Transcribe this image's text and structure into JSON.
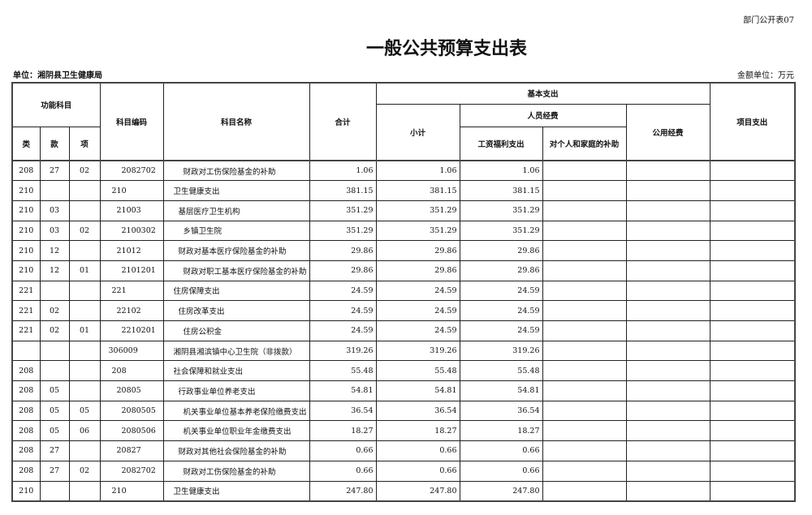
{
  "form_no": "部门公开表07",
  "title": "一般公共预算支出表",
  "unit": "单位：湘阴县卫生健康局",
  "money_unit": "金额单位：万元",
  "headers": {
    "func": "功能科目",
    "lei": "类",
    "kuan": "款",
    "xiang": "项",
    "code": "科目编码",
    "name": "科目名称",
    "total": "合计",
    "basic": "基本支出",
    "subtotal": "小计",
    "personnel": "人员经费",
    "wages": "工资福利支出",
    "subsidy": "对个人和家庭的补助",
    "public": "公用经费",
    "project": "项目支出"
  },
  "rows": [
    {
      "lei": "208",
      "kuan": "27",
      "xiang": "02",
      "code": "2082702",
      "name": "财政对工伤保险基金的补助",
      "total": "1.06",
      "subtotal": "1.06",
      "wages": "1.06",
      "level": 2
    },
    {
      "lei": "210",
      "kuan": "",
      "xiang": "",
      "code": "210",
      "name": "卫生健康支出",
      "total": "381.15",
      "subtotal": "381.15",
      "wages": "381.15",
      "level": 0
    },
    {
      "lei": "210",
      "kuan": "03",
      "xiang": "",
      "code": "21003",
      "name": "基层医疗卫生机构",
      "total": "351.29",
      "subtotal": "351.29",
      "wages": "351.29",
      "level": 1
    },
    {
      "lei": "210",
      "kuan": "03",
      "xiang": "02",
      "code": "2100302",
      "name": "乡镇卫生院",
      "total": "351.29",
      "subtotal": "351.29",
      "wages": "351.29",
      "level": 2
    },
    {
      "lei": "210",
      "kuan": "12",
      "xiang": "",
      "code": "21012",
      "name": "财政对基本医疗保险基金的补助",
      "total": "29.86",
      "subtotal": "29.86",
      "wages": "29.86",
      "level": 1
    },
    {
      "lei": "210",
      "kuan": "12",
      "xiang": "01",
      "code": "2101201",
      "name": "财政对职工基本医疗保险基金的补助",
      "total": "29.86",
      "subtotal": "29.86",
      "wages": "29.86",
      "level": 2
    },
    {
      "lei": "221",
      "kuan": "",
      "xiang": "",
      "code": "221",
      "name": "住房保障支出",
      "total": "24.59",
      "subtotal": "24.59",
      "wages": "24.59",
      "level": 0
    },
    {
      "lei": "221",
      "kuan": "02",
      "xiang": "",
      "code": "22102",
      "name": "住房改革支出",
      "total": "24.59",
      "subtotal": "24.59",
      "wages": "24.59",
      "level": 1
    },
    {
      "lei": "221",
      "kuan": "02",
      "xiang": "01",
      "code": "2210201",
      "name": "住房公积金",
      "total": "24.59",
      "subtotal": "24.59",
      "wages": "24.59",
      "level": 2
    },
    {
      "lei": "",
      "kuan": "",
      "xiang": "",
      "code": "306009",
      "name": "湘阴县湘滨镇中心卫生院（非拨款）",
      "total": "319.26",
      "subtotal": "319.26",
      "wages": "319.26",
      "level": -1
    },
    {
      "lei": "208",
      "kuan": "",
      "xiang": "",
      "code": "208",
      "name": "社会保障和就业支出",
      "total": "55.48",
      "subtotal": "55.48",
      "wages": "55.48",
      "level": 0
    },
    {
      "lei": "208",
      "kuan": "05",
      "xiang": "",
      "code": "20805",
      "name": "行政事业单位养老支出",
      "total": "54.81",
      "subtotal": "54.81",
      "wages": "54.81",
      "level": 1
    },
    {
      "lei": "208",
      "kuan": "05",
      "xiang": "05",
      "code": "2080505",
      "name": "机关事业单位基本养老保险缴费支出",
      "total": "36.54",
      "subtotal": "36.54",
      "wages": "36.54",
      "level": 2
    },
    {
      "lei": "208",
      "kuan": "05",
      "xiang": "06",
      "code": "2080506",
      "name": "机关事业单位职业年金缴费支出",
      "total": "18.27",
      "subtotal": "18.27",
      "wages": "18.27",
      "level": 2
    },
    {
      "lei": "208",
      "kuan": "27",
      "xiang": "",
      "code": "20827",
      "name": "财政对其他社会保险基金的补助",
      "total": "0.66",
      "subtotal": "0.66",
      "wages": "0.66",
      "level": 1
    },
    {
      "lei": "208",
      "kuan": "27",
      "xiang": "02",
      "code": "2082702",
      "name": "财政对工伤保险基金的补助",
      "total": "0.66",
      "subtotal": "0.66",
      "wages": "0.66",
      "level": 2
    },
    {
      "lei": "210",
      "kuan": "",
      "xiang": "",
      "code": "210",
      "name": "卫生健康支出",
      "total": "247.80",
      "subtotal": "247.80",
      "wages": "247.80",
      "level": 0
    }
  ]
}
